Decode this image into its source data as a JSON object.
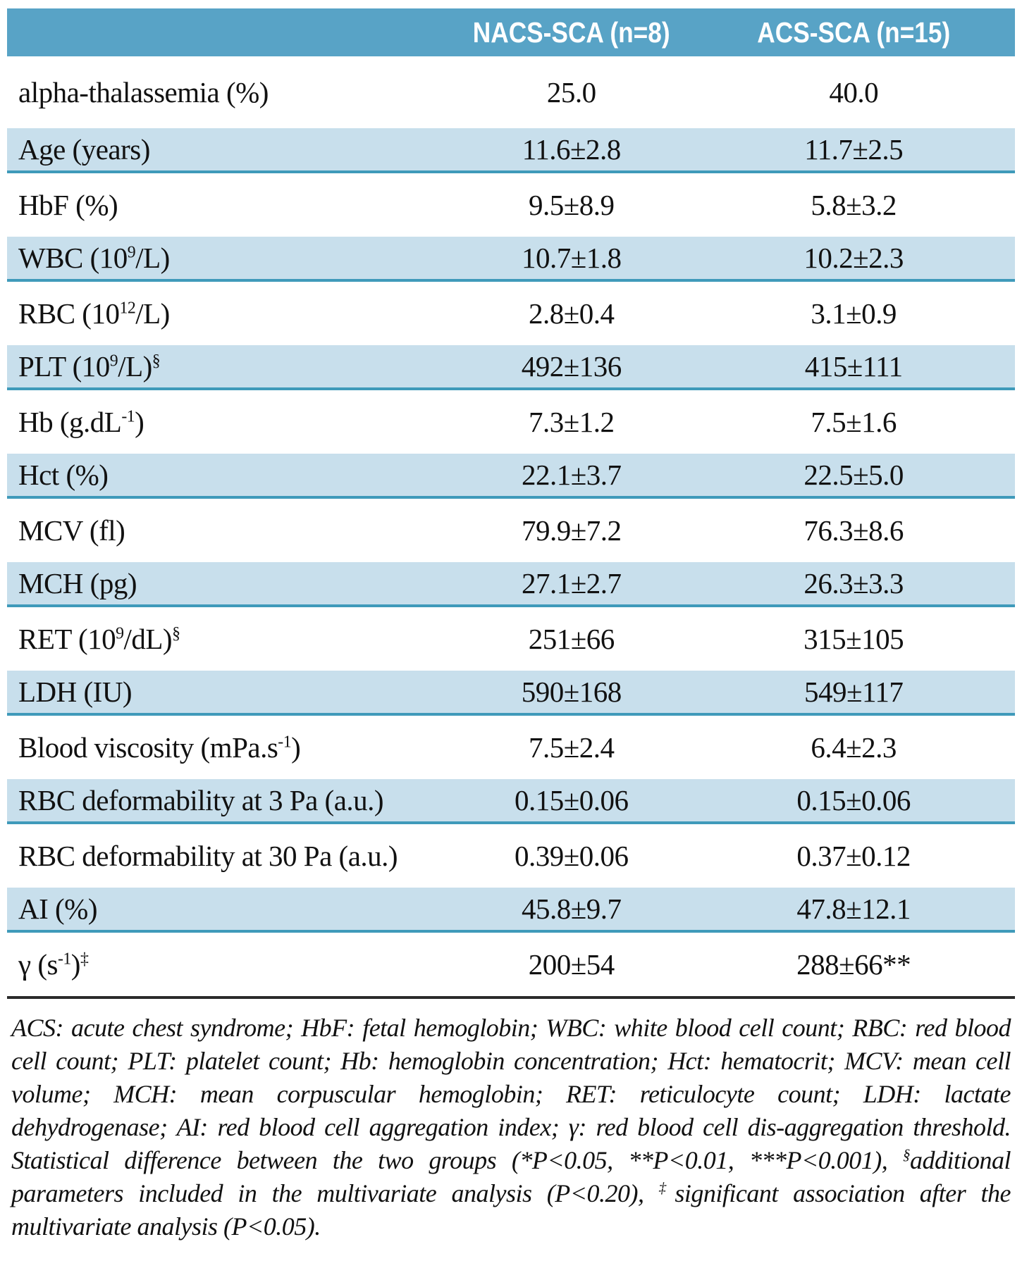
{
  "colors": {
    "header-bg": "#58a3c6",
    "header-text": "#ffffff",
    "shaded-bg": "#c8dfec",
    "shaded-border": "#3f9aba",
    "rule": "#2b2b2b",
    "body-text": "#111111"
  },
  "table": {
    "columns": [
      "",
      "NACS-SCA (n=8)",
      "ACS-SCA (n=15)"
    ],
    "rows": [
      {
        "label": "alpha-thalassemia (%)",
        "nacs": "25.0",
        "acs": "40.0",
        "shaded": false
      },
      {
        "label": "Age (years)",
        "nacs": "11.6±2.8",
        "acs": "11.7±2.5",
        "shaded": true
      },
      {
        "label": "HbF (%)",
        "nacs": "9.5±8.9",
        "acs": "5.8±3.2",
        "shaded": false
      },
      {
        "label": "WBC (10^{9}/L)",
        "nacs": "10.7±1.8",
        "acs": "10.2±2.3",
        "shaded": true
      },
      {
        "label": "RBC (10^{12}/L)",
        "nacs": "2.8±0.4",
        "acs": "3.1±0.9",
        "shaded": false
      },
      {
        "label": "PLT (10^{9}/L)^{§}",
        "nacs": "492±136",
        "acs": "415±111",
        "shaded": true
      },
      {
        "label": "Hb (g.dL^{-1})",
        "nacs": "7.3±1.2",
        "acs": "7.5±1.6",
        "shaded": false
      },
      {
        "label": "Hct (%)",
        "nacs": "22.1±3.7",
        "acs": "22.5±5.0",
        "shaded": true
      },
      {
        "label": "MCV (fl)",
        "nacs": "79.9±7.2",
        "acs": "76.3±8.6",
        "shaded": false
      },
      {
        "label": "MCH (pg)",
        "nacs": "27.1±2.7",
        "acs": "26.3±3.3",
        "shaded": true
      },
      {
        "label": "RET (10^{9}/dL)^{§}",
        "nacs": "251±66",
        "acs": "315±105",
        "shaded": false
      },
      {
        "label": "LDH (IU)",
        "nacs": "590±168",
        "acs": "549±117",
        "shaded": true
      },
      {
        "label": "Blood viscosity (mPa.s^{-1})",
        "nacs": "7.5±2.4",
        "acs": "6.4±2.3",
        "shaded": false
      },
      {
        "label": "RBC deformability at 3 Pa (a.u.)",
        "nacs": "0.15±0.06",
        "acs": "0.15±0.06",
        "shaded": true
      },
      {
        "label": "RBC deformability at 30 Pa (a.u.)",
        "nacs": "0.39±0.06",
        "acs": "0.37±0.12",
        "shaded": false
      },
      {
        "label": "AI (%)",
        "nacs": "45.8±9.7",
        "acs": "47.8±12.1",
        "shaded": true
      },
      {
        "label": "γ (s^{-1})^{‡}",
        "nacs": "200±54",
        "acs": "288±66**",
        "shaded": false
      }
    ]
  },
  "footnote": "ACS: acute chest syndrome; HbF: fetal hemoglobin; WBC: white blood cell count; RBC: red blood cell count; PLT: platelet count; Hb: hemoglobin concentration; Hct: hematocrit; MCV: mean cell volume; MCH: mean corpuscular hemoglobin; RET: reticulocyte count; LDH: lactate dehydrogenase; AI: red blood cell aggregation index; γ: red blood cell dis-aggregation threshold. Statistical difference between the two groups (*P<0.05, **P<0.01, ***P<0.001), ^{§}additional parameters included in the multivariate analysis (P<0.20), ^{‡}significant association after the multivariate analysis (P<0.05)."
}
